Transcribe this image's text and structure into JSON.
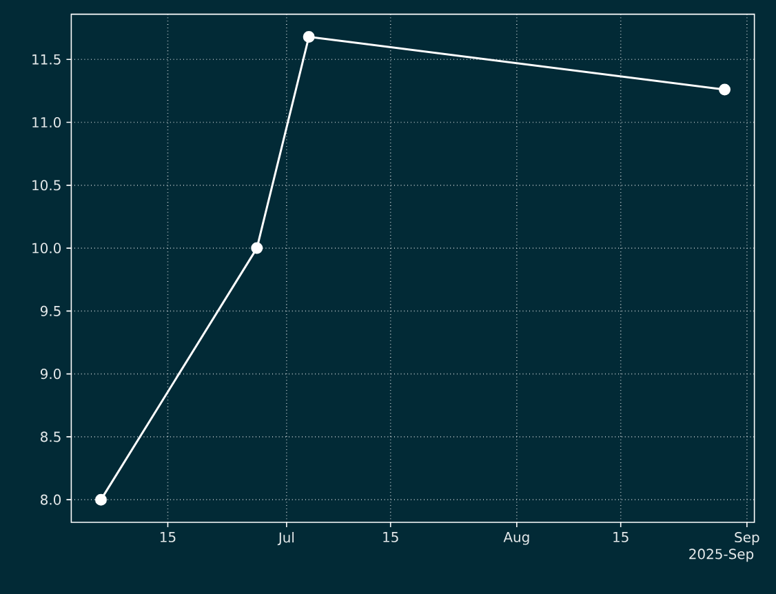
{
  "chart_data": {
    "type": "line",
    "x": [
      "2025-06-06",
      "2025-06-27",
      "2025-07-04",
      "2025-08-29"
    ],
    "series": [
      {
        "color": "#ffffff",
        "values": [
          8.0,
          10.0,
          11.68,
          11.26
        ]
      }
    ],
    "xlim": [
      "2025-06-02",
      "2025-09-02"
    ],
    "xticks": [
      {
        "value": "2025-06-15",
        "label": "15"
      },
      {
        "value": "2025-07-01",
        "label": "Jul"
      },
      {
        "value": "2025-07-15",
        "label": "15"
      },
      {
        "value": "2025-08-01",
        "label": "Aug"
      },
      {
        "value": "2025-08-15",
        "label": "15"
      },
      {
        "value": "2025-09-01",
        "label": "Sep"
      }
    ],
    "ylim": [
      7.82,
      11.86
    ],
    "yticks": [
      {
        "value": 8.0,
        "label": "8.0"
      },
      {
        "value": 8.5,
        "label": "8.5"
      },
      {
        "value": 9.0,
        "label": "9.0"
      },
      {
        "value": 9.5,
        "label": "9.5"
      },
      {
        "value": 10.0,
        "label": "10.0"
      },
      {
        "value": 10.5,
        "label": "10.5"
      },
      {
        "value": 11.0,
        "label": "11.0"
      },
      {
        "value": 11.5,
        "label": "11.5"
      }
    ],
    "annotations": [
      "2025-Sep"
    ],
    "grid": true,
    "marker": "circle",
    "line_style": "solid"
  }
}
